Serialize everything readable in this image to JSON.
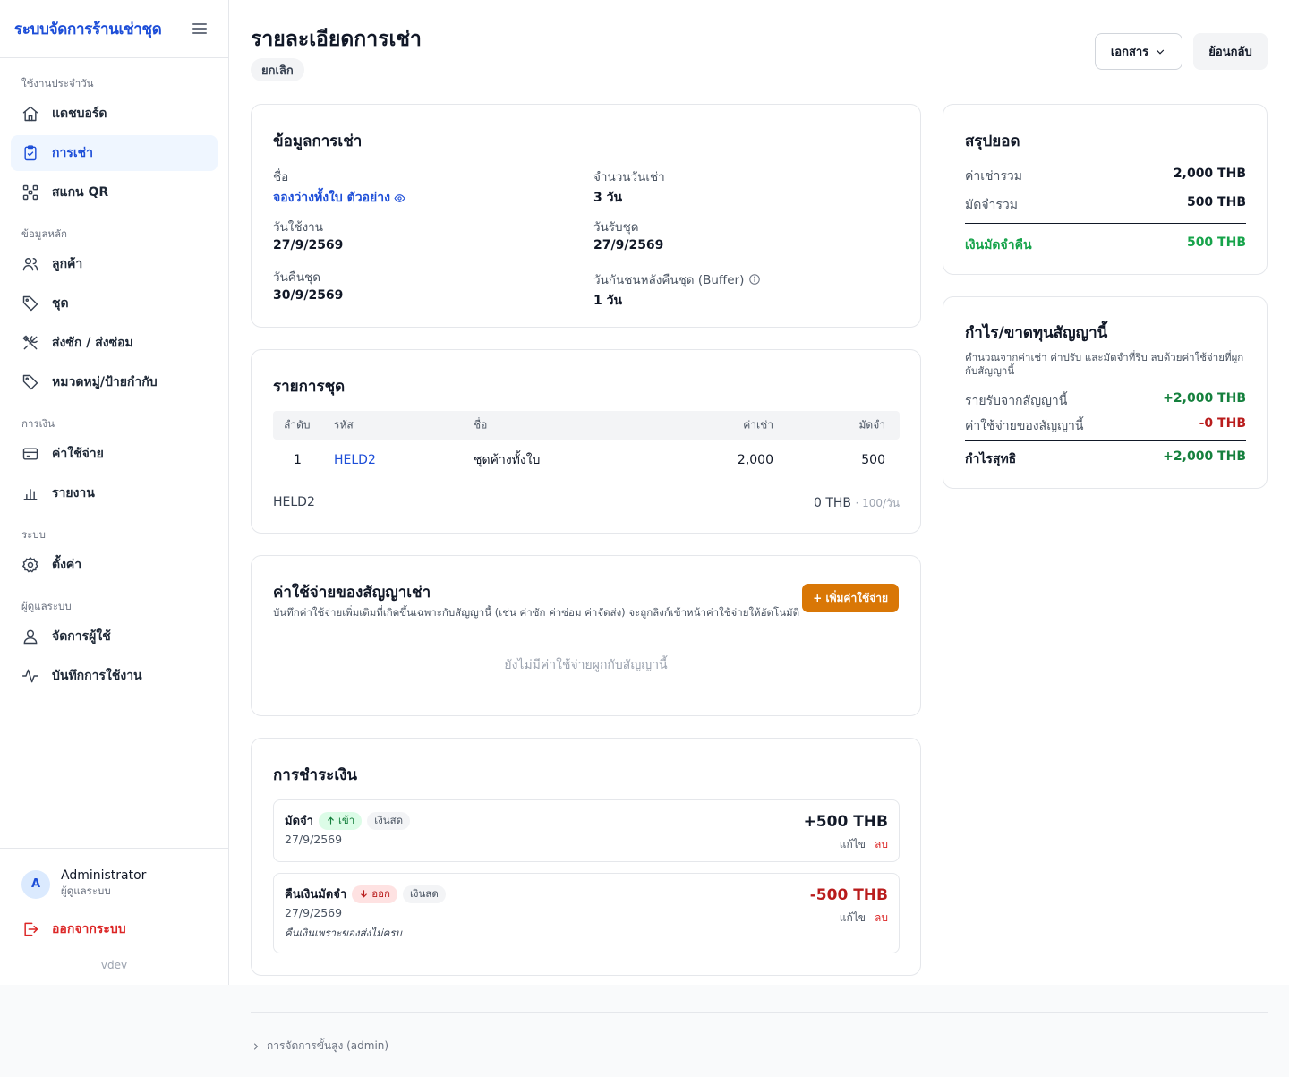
{
  "app": {
    "brand": "ระบบจัดการร้านเช่าชุด",
    "version": "vdev"
  },
  "sidebar": {
    "sections": [
      {
        "label": "ใช้งานประจำวัน"
      },
      {
        "label": "ข้อมูลหลัก"
      },
      {
        "label": "การเงิน"
      },
      {
        "label": "ระบบ"
      },
      {
        "label": "ผู้ดูแลระบบ"
      }
    ],
    "items": [
      {
        "label": "แดชบอร์ด",
        "icon": "home-icon"
      },
      {
        "label": "การเช่า",
        "icon": "clipboard-icon",
        "active": true
      },
      {
        "label": "สแกน QR",
        "icon": "qr-icon"
      },
      {
        "label": "ลูกค้า",
        "icon": "users-icon"
      },
      {
        "label": "ชุด",
        "icon": "tag-icon"
      },
      {
        "label": "ส่งซัก / ส่งซ่อม",
        "icon": "tools-icon"
      },
      {
        "label": "หมวดหมู่/ป้ายกำกับ",
        "icon": "tag-icon"
      },
      {
        "label": "ค่าใช้จ่าย",
        "icon": "credit-card-icon"
      },
      {
        "label": "รายงาน",
        "icon": "bar-chart-icon"
      },
      {
        "label": "ตั้งค่า",
        "icon": "gear-icon"
      },
      {
        "label": "จัดการผู้ใช้",
        "icon": "user-icon"
      },
      {
        "label": "บันทึกการใช้งาน",
        "icon": "activity-icon"
      }
    ],
    "user": {
      "initial": "A",
      "name": "Administrator",
      "role": "ผู้ดูแลระบบ"
    },
    "logout": "ออกจากระบบ"
  },
  "header": {
    "title": "รายละเอียดการเช่า",
    "status": "ยกเลิก",
    "documents_button": "เอกสาร",
    "back_button": "ย้อนกลับ"
  },
  "rental_info": {
    "title": "ข้อมูลการเช่า",
    "name_label": "ชื่อ",
    "name_value": "จองว่างทั้งใบ ตัวอย่าง",
    "days_label": "จำนวนวันเช่า",
    "days_value": "3 วัน",
    "use_date_label": "วันใช้งาน",
    "use_date_value": "27/9/2569",
    "pickup_label": "วันรับชุด",
    "pickup_value": "27/9/2569",
    "return_label": "วันคืนชุด",
    "return_value": "30/9/2569",
    "buffer_label": "วันกันชนหลังคืนชุด (Buffer)",
    "buffer_value": "1 วัน"
  },
  "items": {
    "title": "รายการชุด",
    "columns": [
      "ลำดับ",
      "รหัส",
      "ชื่อ",
      "ค่าเช่า",
      "มัดจำ"
    ],
    "rows": [
      {
        "no": "1",
        "code": "HELD2",
        "name": "ชุดค้างทั้งใบ",
        "rent": "2,000",
        "deposit": "500"
      }
    ],
    "footer_code": "HELD2",
    "footer_amount": "0 THB",
    "footer_rate": "· 100/วัน"
  },
  "expenses": {
    "title": "ค่าใช้จ่ายของสัญญาเช่า",
    "subtitle": "บันทึกค่าใช้จ่ายเพิ่มเติมที่เกิดขึ้นเฉพาะกับสัญญานี้ (เช่น ค่าซัก ค่าซ่อม ค่าจัดส่ง) จะถูกลิงก์เข้าหน้าค่าใช้จ่ายให้อัตโนมัติ",
    "add_button": "+ เพิ่มค่าใช้จ่าย",
    "empty": "ยังไม่มีค่าใช้จ่ายผูกกับสัญญานี้"
  },
  "payments": {
    "title": "การชำระเงิน",
    "edit_label": "แก้ไข",
    "delete_label": "ลบ",
    "list": [
      {
        "label": "มัดจำ",
        "direction": "เข้า",
        "method": "เงินสด",
        "date": "27/9/2569",
        "amount": "+500 THB",
        "note": ""
      },
      {
        "label": "คืนเงินมัดจำ",
        "direction": "ออก",
        "method": "เงินสด",
        "date": "27/9/2569",
        "amount": "-500 THB",
        "note": "คืนเงินเพราะของส่งไม่ครบ"
      }
    ]
  },
  "summary": {
    "title": "สรุปยอด",
    "total_rent_label": "ค่าเช่ารวม",
    "total_rent_value": "2,000 THB",
    "total_deposit_label": "มัดจำรวม",
    "total_deposit_value": "500 THB",
    "refund_label": "เงินมัดจำคืน",
    "refund_value": "500 THB"
  },
  "profit": {
    "title": "กำไร/ขาดทุนสัญญานี้",
    "description": "คำนวณจากค่าเช่า ค่าปรับ และมัดจำที่ริบ ลบด้วยค่าใช้จ่ายที่ผูกกับสัญญานี้",
    "income_label": "รายรับจากสัญญานี้",
    "income_value": "+2,000 THB",
    "expense_label": "ค่าใช้จ่ายของสัญญานี้",
    "expense_value": "-0 THB",
    "net_label": "กำไรสุทธิ",
    "net_value": "+2,000 THB"
  },
  "footer": {
    "admin_link": "การจัดการขั้นสูง (admin)"
  },
  "colors": {
    "accent": "#1d4ed8",
    "orange": "#d97706",
    "green": "#16a34a",
    "red": "#b91c1c"
  }
}
